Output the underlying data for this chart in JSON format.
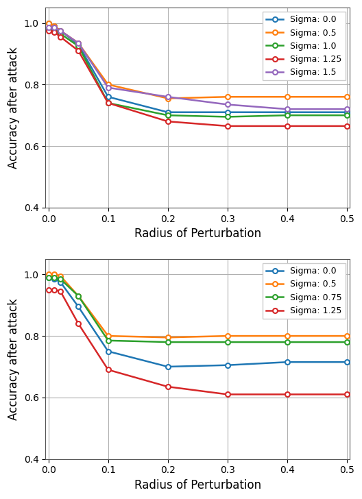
{
  "plot1": {
    "x": [
      0.0,
      0.01,
      0.02,
      0.05,
      0.1,
      0.2,
      0.3,
      0.4,
      0.5
    ],
    "series": [
      {
        "label": "Sigma: 0.0",
        "color": "#1f77b4",
        "values": [
          1.0,
          0.99,
          0.975,
          0.93,
          0.76,
          0.71,
          0.71,
          0.71,
          0.71
        ]
      },
      {
        "label": "Sigma: 0.5",
        "color": "#ff7f0e",
        "values": [
          1.0,
          0.99,
          0.975,
          0.935,
          0.8,
          0.755,
          0.76,
          0.76,
          0.76
        ]
      },
      {
        "label": "Sigma: 1.0",
        "color": "#2ca02c",
        "values": [
          0.98,
          0.975,
          0.965,
          0.925,
          0.74,
          0.7,
          0.695,
          0.7,
          0.7
        ]
      },
      {
        "label": "Sigma: 1.25",
        "color": "#d62728",
        "values": [
          0.975,
          0.97,
          0.955,
          0.91,
          0.74,
          0.68,
          0.665,
          0.665,
          0.665
        ]
      },
      {
        "label": "Sigma: 1.5",
        "color": "#9467bd",
        "values": [
          0.985,
          0.985,
          0.975,
          0.935,
          0.79,
          0.76,
          0.735,
          0.72,
          0.72
        ]
      }
    ],
    "xlabel": "Radius of Perturbation",
    "ylabel": "Accuracy after attack",
    "ylim": [
      0.4,
      1.05
    ],
    "yticks": [
      0.4,
      0.6,
      0.8,
      1.0
    ],
    "xlim": [
      -0.005,
      0.505
    ],
    "xticks": [
      0.0,
      0.1,
      0.2,
      0.3,
      0.4,
      0.5
    ]
  },
  "plot2": {
    "x": [
      0.0,
      0.01,
      0.02,
      0.05,
      0.1,
      0.2,
      0.3,
      0.4,
      0.5
    ],
    "series": [
      {
        "label": "Sigma: 0.0",
        "color": "#1f77b4",
        "values": [
          0.99,
          0.985,
          0.975,
          0.895,
          0.75,
          0.7,
          0.705,
          0.715,
          0.715
        ]
      },
      {
        "label": "Sigma: 0.5",
        "color": "#ff7f0e",
        "values": [
          1.0,
          1.0,
          0.995,
          0.93,
          0.8,
          0.795,
          0.8,
          0.8,
          0.8
        ]
      },
      {
        "label": "Sigma: 0.75",
        "color": "#2ca02c",
        "values": [
          0.99,
          0.99,
          0.985,
          0.93,
          0.785,
          0.78,
          0.78,
          0.78,
          0.78
        ]
      },
      {
        "label": "Sigma: 1.25",
        "color": "#d62728",
        "values": [
          0.95,
          0.95,
          0.945,
          0.84,
          0.69,
          0.635,
          0.61,
          0.61,
          0.61
        ]
      }
    ],
    "xlabel": "Radius of Perturbation",
    "ylabel": "Accuracy after attack",
    "ylim": [
      0.4,
      1.05
    ],
    "yticks": [
      0.4,
      0.6,
      0.8,
      1.0
    ],
    "xlim": [
      -0.005,
      0.505
    ],
    "xticks": [
      0.0,
      0.1,
      0.2,
      0.3,
      0.4,
      0.5
    ]
  },
  "background_color": "#ffffff",
  "grid_color": "#b0b0b0",
  "figsize": [
    5.28,
    7.28
  ],
  "dpi": 100
}
